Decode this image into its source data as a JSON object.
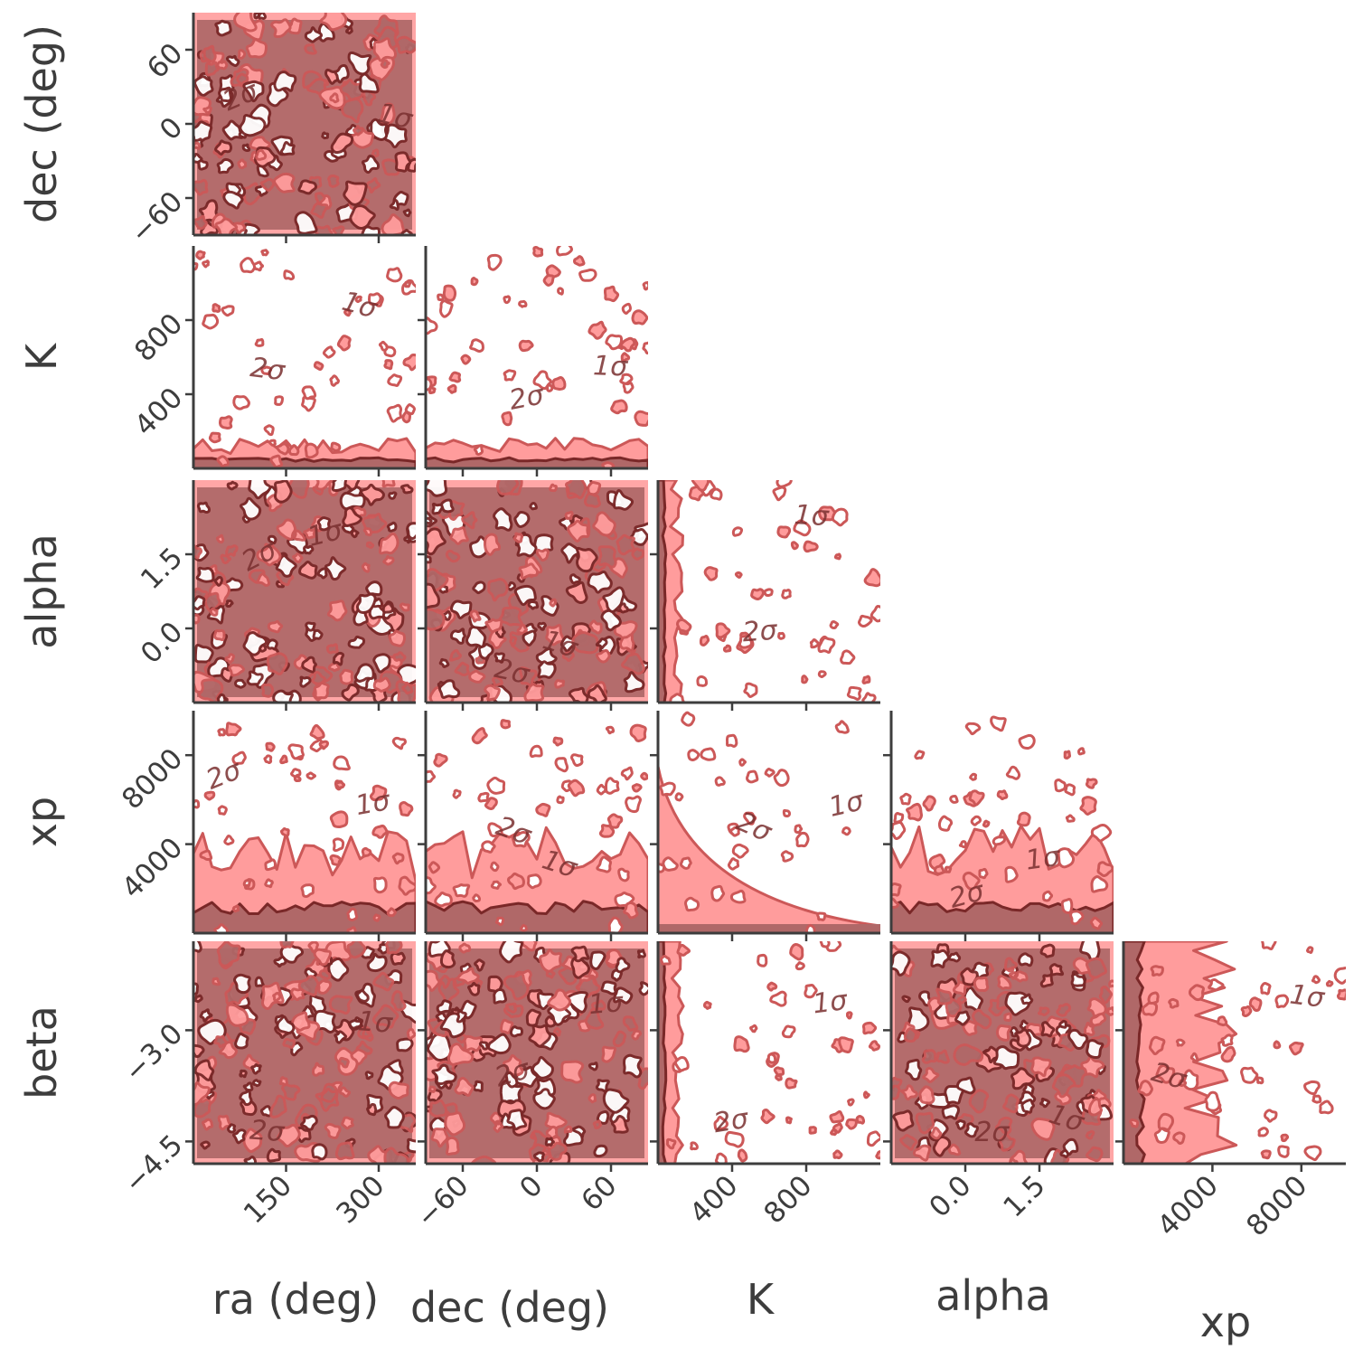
{
  "chart_data": {
    "type": "corner",
    "parameters": [
      {
        "key": "ra",
        "label": "ra (deg)",
        "range": [
          0,
          360
        ],
        "ticks": [
          150,
          300
        ],
        "tick_labels": [
          "150",
          "300"
        ]
      },
      {
        "key": "dec",
        "label": "dec (deg)",
        "range": [
          -90,
          90
        ],
        "ticks": [
          -60,
          0,
          60
        ],
        "tick_labels": [
          "−60",
          "0",
          "60"
        ]
      },
      {
        "key": "K",
        "label": "K",
        "range": [
          0,
          1200
        ],
        "ticks": [
          400,
          800
        ],
        "tick_labels": [
          "400",
          "800"
        ]
      },
      {
        "key": "alpha",
        "label": "alpha",
        "range": [
          -1.5,
          3.0
        ],
        "ticks": [
          0.0,
          1.5
        ],
        "tick_labels": [
          "0.0",
          "1.5"
        ]
      },
      {
        "key": "xp",
        "label": "xp",
        "range": [
          0,
          10000
        ],
        "ticks": [
          4000,
          8000
        ],
        "tick_labels": [
          "4000",
          "8000"
        ]
      },
      {
        "key": "beta",
        "label": "beta",
        "range": [
          -4.8,
          -1.8
        ],
        "ticks": [
          -3.0,
          -4.5
        ],
        "tick_labels": [
          "−3.0",
          "−4.5"
        ]
      }
    ],
    "contour_levels": [
      "1σ",
      "2σ"
    ],
    "sigma_labels": {
      "one": "1σ",
      "two": "2σ",
      "one_short": "1",
      "two_short": "2"
    },
    "colors": {
      "inner_fill": "#b06868",
      "outer_fill": "#ff9c9c",
      "inner_line": "#7a2828",
      "outer_line": "#cc5858",
      "axis": "#3d3d3d"
    },
    "grid": false,
    "diagonal_shown": false
  }
}
